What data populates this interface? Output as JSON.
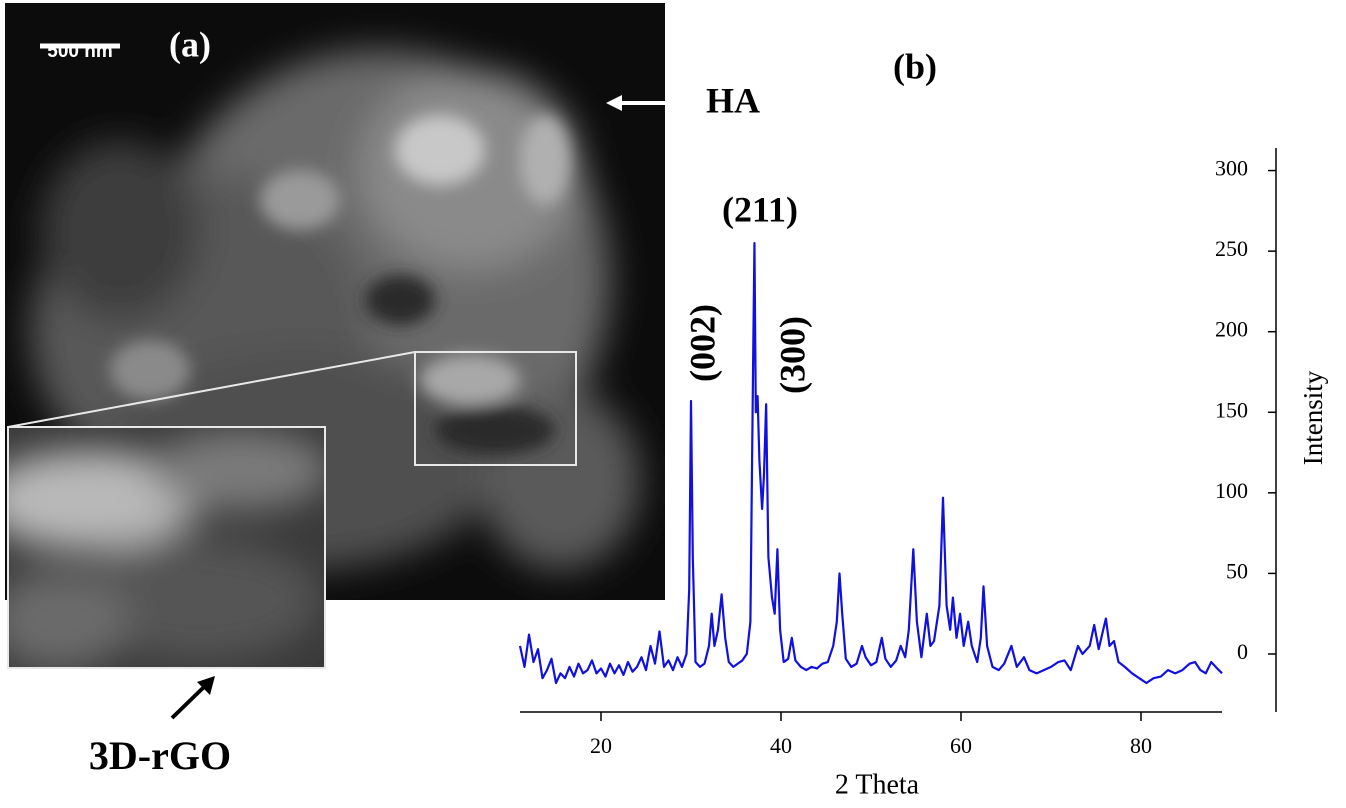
{
  "figure": {
    "panel_a_label": "(a)",
    "scale_bar": "500 nm",
    "panel_b_label": "(b)",
    "arrow_label_top": "HA",
    "arrow_label_bottom": "3D-rGO"
  },
  "chart_data": {
    "type": "line",
    "x_label": "2 Theta",
    "y_label": "Intensity",
    "color": "#1010e0",
    "annotations": [
      "(002)",
      "(211)",
      "(300)"
    ],
    "xlim": [
      11,
      89
    ],
    "xticks": [
      20,
      40,
      60,
      80
    ],
    "ylim": [
      -36,
      314
    ],
    "yticks": [
      0,
      50,
      100,
      150,
      200,
      250,
      300
    ],
    "x": [
      11,
      11.5,
      12,
      12.5,
      13,
      13.5,
      14,
      14.5,
      15,
      15.5,
      16,
      16.5,
      17,
      17.5,
      18,
      18.5,
      19,
      19.5,
      20,
      20.5,
      21,
      21.5,
      22,
      22.5,
      23,
      23.5,
      24,
      24.5,
      25,
      25.5,
      26,
      26.5,
      27,
      27.5,
      28,
      28.5,
      29,
      29.5,
      29.8,
      30.0,
      30.2,
      30.5,
      31,
      31.5,
      32,
      32.3,
      32.6,
      33,
      33.4,
      33.8,
      34.2,
      34.7,
      35.2,
      35.7,
      36.2,
      36.6,
      36.9,
      37.05,
      37.2,
      37.4,
      37.6,
      37.9,
      38.1,
      38.35,
      38.6,
      39,
      39.3,
      39.6,
      39.9,
      40.3,
      40.8,
      41.2,
      41.6,
      42.2,
      42.8,
      43.4,
      44,
      44.6,
      45.2,
      45.8,
      46.2,
      46.5,
      46.8,
      47.2,
      47.8,
      48.4,
      49,
      49.4,
      50,
      50.6,
      51.2,
      51.6,
      52.2,
      52.8,
      53.3,
      53.8,
      54.2,
      54.7,
      55.1,
      55.6,
      56.2,
      56.6,
      57,
      57.6,
      58.0,
      58.4,
      58.8,
      59.1,
      59.5,
      59.9,
      60.3,
      60.8,
      61.2,
      61.8,
      62.2,
      62.5,
      62.9,
      63.5,
      64.2,
      64.8,
      65.6,
      66.2,
      67,
      67.6,
      68.4,
      69.2,
      70,
      70.8,
      71.5,
      72.2,
      73,
      73.5,
      74.3,
      74.8,
      75.3,
      75.8,
      76.1,
      76.5,
      77,
      77.5,
      78.2,
      79,
      79.8,
      80.6,
      81.4,
      82.2,
      83,
      83.8,
      84.6,
      85.4,
      86,
      86.6,
      87.2,
      87.8,
      88.3,
      89
    ],
    "values": [
      5,
      -8,
      12,
      -5,
      3,
      -15,
      -10,
      -3,
      -18,
      -12,
      -15,
      -8,
      -14,
      -6,
      -12,
      -10,
      -4,
      -12,
      -9,
      -14,
      -6,
      -12,
      -7,
      -13,
      -5,
      -11,
      -8,
      -2,
      -10,
      5,
      -6,
      14,
      -8,
      -4,
      -10,
      -2,
      -8,
      0,
      40,
      157,
      60,
      -5,
      -8,
      -6,
      5,
      25,
      5,
      15,
      37,
      10,
      -5,
      -8,
      -6,
      -4,
      0,
      20,
      180,
      255,
      150,
      160,
      120,
      90,
      110,
      155,
      60,
      35,
      25,
      65,
      15,
      -5,
      -3,
      10,
      -4,
      -8,
      -10,
      -8,
      -9,
      -6,
      -5,
      5,
      20,
      50,
      25,
      -3,
      -8,
      -6,
      5,
      -2,
      -7,
      -5,
      10,
      -3,
      -8,
      -4,
      5,
      -2,
      15,
      65,
      20,
      -2,
      25,
      5,
      8,
      30,
      97,
      30,
      15,
      35,
      10,
      25,
      5,
      20,
      5,
      -5,
      10,
      42,
      5,
      -8,
      -10,
      -6,
      5,
      -8,
      -2,
      -10,
      -12,
      -10,
      -8,
      -5,
      -4,
      -10,
      5,
      0,
      5,
      18,
      3,
      15,
      22,
      5,
      8,
      -5,
      -8,
      -12,
      -15,
      -18,
      -15,
      -14,
      -10,
      -12,
      -10,
      -6,
      -5,
      -10,
      -12,
      -5,
      -8,
      -12
    ]
  }
}
